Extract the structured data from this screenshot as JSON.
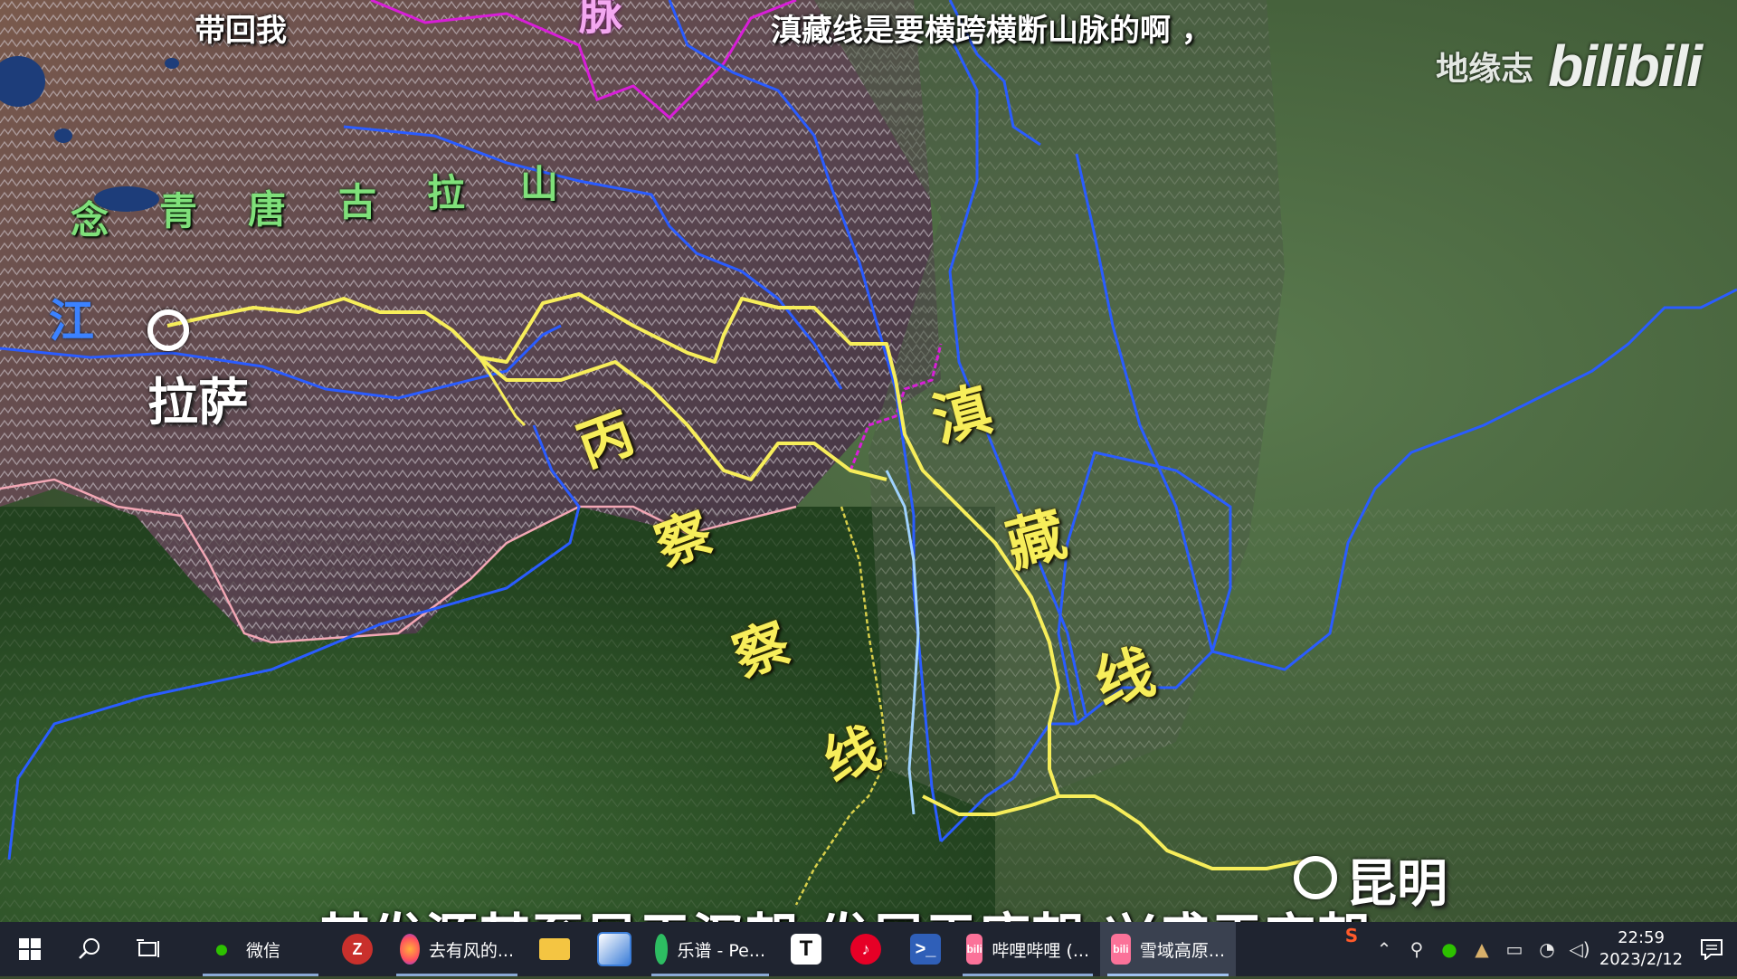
{
  "video": {
    "top_caption_left": "带回我",
    "top_caption_right": "滇藏线是要横跨横断山脉的啊 ，",
    "bottom_subtitle": "其发源甚至早于汉朝 发展于唐朝 兴盛于宋朝",
    "partial_top_label": "脉",
    "watermark": {
      "channel": "地缘志",
      "logo": "bilibili"
    },
    "map_labels": {
      "mountain_range": [
        "念",
        "青",
        "唐",
        "古",
        "拉",
        "山"
      ],
      "river": "江",
      "city_lhasa": "拉萨",
      "city_kunming": "昆明",
      "route_bingcha": [
        "丙",
        "察"
      ],
      "route_chawa": [
        "察",
        "线"
      ],
      "route_dianzang": [
        "滇",
        "藏",
        "线"
      ]
    },
    "colors": {
      "route": "#f7ee5a",
      "river": "#2a5cff",
      "border_magenta": "#d81ed8",
      "border_pink": "#f3a7b5"
    }
  },
  "taskbar": {
    "start_icon": "windows-start-icon",
    "search_icon": "search-icon",
    "taskview_icon": "task-view-icon",
    "apps": [
      {
        "name": "wechat",
        "label": "微信",
        "icon_text": "",
        "color": "#2dc100"
      },
      {
        "name": "zotero",
        "label": "",
        "icon_text": "Z",
        "color": "#c9302c"
      },
      {
        "name": "firefox",
        "label": "去有风的...",
        "icon_text": "",
        "color": "#ff7139"
      },
      {
        "name": "explorer",
        "label": "",
        "icon_text": "",
        "color": "#f4c542"
      },
      {
        "name": "app-blue",
        "label": "",
        "icon_text": "",
        "color": "#3b7dd8"
      },
      {
        "name": "yuepu",
        "label": "乐谱 - Pe...",
        "icon_text": "",
        "color": "#2dbd62"
      },
      {
        "name": "typora",
        "label": "",
        "icon_text": "T",
        "color": "#ffffff"
      },
      {
        "name": "netease",
        "label": "",
        "icon_text": "",
        "color": "#e60026"
      },
      {
        "name": "powershell",
        "label": "",
        "icon_text": "",
        "color": "#2f5fb8"
      },
      {
        "name": "bilibili-1",
        "label": "哔哩哔哩 (...",
        "icon_text": "bili",
        "color": "#fb7299"
      },
      {
        "name": "bilibili-2",
        "label": "雪域高原...",
        "icon_text": "bili",
        "color": "#fb7299"
      }
    ],
    "tray": {
      "ime_icon": "S",
      "clock_time": "22:59",
      "clock_date": "2023/2/12"
    }
  }
}
